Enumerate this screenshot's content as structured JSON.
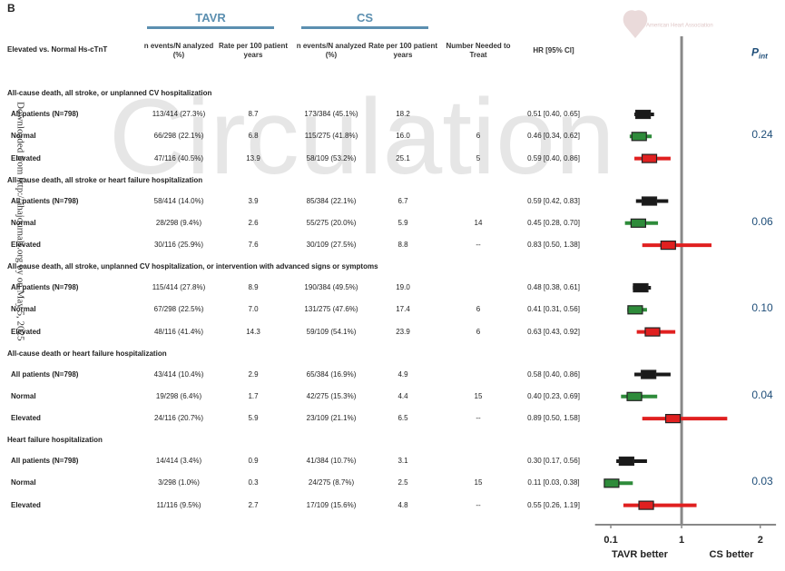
{
  "panel_label": "B",
  "watermark": "Circulation",
  "side_note": "Downloaded from http://ahajournals.org by on May 5, 2025",
  "logo_text": "American Heart Association",
  "chart_data": {
    "type": "forest",
    "groups": [
      "TAVR",
      "CS"
    ],
    "columns": [
      "Elevated vs. Normal Hs-cTnT",
      "n events/N analyzed (%)",
      "Rate per 100 patient years",
      "n events/N analyzed (%)",
      "Rate per 100 patient years",
      "Number Needed to Treat",
      "HR [95% CI]"
    ],
    "p_header": {
      "main": "P",
      "sub": "int"
    },
    "sections": [
      {
        "title": "All-cause death, all stroke, or unplanned CV hospitalization",
        "p": "0.24",
        "rows": [
          {
            "label": "All patients (N=798)",
            "color": "#1a1a1a",
            "tavr": "113/414 (27.3%)",
            "tavr_rate": "8.7",
            "cs": "173/384 (45.1%)",
            "cs_rate": "18.2",
            "nnt": null,
            "hr_label": "0.51 [0.40, 0.65]",
            "hr": 0.51,
            "ci": [
              0.4,
              0.65
            ]
          },
          {
            "label": "Normal",
            "color": "#2e8b3a",
            "tavr": "66/298 (22.1%)",
            "tavr_rate": "6.8",
            "cs": "115/275 (41.8%)",
            "cs_rate": "16.0",
            "nnt": "6",
            "hr_label": "0.46 [0.34, 0.62]",
            "hr": 0.46,
            "ci": [
              0.34,
              0.62
            ]
          },
          {
            "label": "Elevated",
            "color": "#e02020",
            "tavr": "47/116 (40.5%)",
            "tavr_rate": "13.9",
            "cs": "58/109 (53.2%)",
            "cs_rate": "25.1",
            "nnt": "5",
            "hr_label": "0.59 [0.40, 0.86]",
            "hr": 0.59,
            "ci": [
              0.4,
              0.86
            ]
          }
        ]
      },
      {
        "title": "All-cause death, all stroke or heart failure hospitalization",
        "p": "0.06",
        "rows": [
          {
            "label": "All patients (N=798)",
            "color": "#1a1a1a",
            "tavr": "58/414 (14.0%)",
            "tavr_rate": "3.9",
            "cs": "85/384 (22.1%)",
            "cs_rate": "6.7",
            "nnt": null,
            "hr_label": "0.59 [0.42, 0.83]",
            "hr": 0.59,
            "ci": [
              0.42,
              0.83
            ]
          },
          {
            "label": "Normal",
            "color": "#2e8b3a",
            "tavr": "28/298 (9.4%)",
            "tavr_rate": "2.6",
            "cs": "55/275 (20.0%)",
            "cs_rate": "5.9",
            "nnt": "14",
            "hr_label": "0.45 [0.28, 0.70]",
            "hr": 0.45,
            "ci": [
              0.28,
              0.7
            ]
          },
          {
            "label": "Elevated",
            "color": "#e02020",
            "tavr": "30/116 (25.9%)",
            "tavr_rate": "7.6",
            "cs": "30/109 (27.5%)",
            "cs_rate": "8.8",
            "nnt": "--",
            "hr_label": "0.83 [0.50, 1.38]",
            "hr": 0.83,
            "ci": [
              0.5,
              1.38
            ]
          }
        ]
      },
      {
        "title": "All-cause death, all stroke, unplanned CV hospitalization, or intervention with advanced signs or symptoms",
        "p": "0.10",
        "rows": [
          {
            "label": "All patients (N=798)",
            "color": "#1a1a1a",
            "tavr": "115/414 (27.8%)",
            "tavr_rate": "8.9",
            "cs": "190/384 (49.5%)",
            "cs_rate": "19.0",
            "nnt": null,
            "hr_label": "0.48 [0.38, 0.61]",
            "hr": 0.48,
            "ci": [
              0.38,
              0.61
            ]
          },
          {
            "label": "Normal",
            "color": "#2e8b3a",
            "tavr": "67/298 (22.5%)",
            "tavr_rate": "7.0",
            "cs": "131/275 (47.6%)",
            "cs_rate": "17.4",
            "nnt": "6",
            "hr_label": "0.41 [0.31, 0.56]",
            "hr": 0.41,
            "ci": [
              0.31,
              0.56
            ]
          },
          {
            "label": "Elevated",
            "color": "#e02020",
            "tavr": "48/116 (41.4%)",
            "tavr_rate": "14.3",
            "cs": "59/109 (54.1%)",
            "cs_rate": "23.9",
            "nnt": "6",
            "hr_label": "0.63 [0.43, 0.92]",
            "hr": 0.63,
            "ci": [
              0.43,
              0.92
            ]
          }
        ]
      },
      {
        "title": "All-cause death or heart failure hospitalization",
        "p": "0.04",
        "rows": [
          {
            "label": "All patients (N=798)",
            "color": "#1a1a1a",
            "tavr": "43/414 (10.4%)",
            "tavr_rate": "2.9",
            "cs": "65/384 (16.9%)",
            "cs_rate": "4.9",
            "nnt": null,
            "hr_label": "0.58 [0.40, 0.86]",
            "hr": 0.58,
            "ci": [
              0.4,
              0.86
            ]
          },
          {
            "label": "Normal",
            "color": "#2e8b3a",
            "tavr": "19/298 (6.4%)",
            "tavr_rate": "1.7",
            "cs": "42/275 (15.3%)",
            "cs_rate": "4.4",
            "nnt": "15",
            "hr_label": "0.40 [0.23, 0.69]",
            "hr": 0.4,
            "ci": [
              0.23,
              0.69
            ]
          },
          {
            "label": "Elevated",
            "color": "#e02020",
            "tavr": "24/116 (20.7%)",
            "tavr_rate": "5.9",
            "cs": "23/109 (21.1%)",
            "cs_rate": "6.5",
            "nnt": "--",
            "hr_label": "0.89 [0.50, 1.58]",
            "hr": 0.89,
            "ci": [
              0.5,
              1.58
            ]
          }
        ]
      },
      {
        "title": "Heart failure hospitalization",
        "p": "0.03",
        "rows": [
          {
            "label": "All patients (N=798)",
            "color": "#1a1a1a",
            "tavr": "14/414 (3.4%)",
            "tavr_rate": "0.9",
            "cs": "41/384 (10.7%)",
            "cs_rate": "3.1",
            "nnt": null,
            "hr_label": "0.30 [0.17, 0.56]",
            "hr": 0.3,
            "ci": [
              0.17,
              0.56
            ]
          },
          {
            "label": "Normal",
            "color": "#2e8b3a",
            "tavr": "3/298 (1.0%)",
            "tavr_rate": "0.3",
            "cs": "24/275 (8.7%)",
            "cs_rate": "2.5",
            "nnt": "15",
            "hr_label": "0.11 [0.03, 0.38]",
            "hr": 0.11,
            "ci": [
              0.03,
              0.38
            ]
          },
          {
            "label": "Elevated",
            "color": "#e02020",
            "tavr": "11/116 (9.5%)",
            "tavr_rate": "2.7",
            "cs": "17/109 (15.6%)",
            "cs_rate": "4.8",
            "nnt": "--",
            "hr_label": "0.55 [0.26, 1.19]",
            "hr": 0.55,
            "ci": [
              0.26,
              1.19
            ]
          }
        ]
      }
    ],
    "xlim": [
      -0.1,
      2.2
    ],
    "xticks": [
      0.1,
      1,
      2
    ],
    "reference": 1,
    "x_left_label": "TAVR better",
    "x_right_label": "CS better",
    "group_color": "#5b8fb0",
    "p_color": "#1f4e79"
  }
}
